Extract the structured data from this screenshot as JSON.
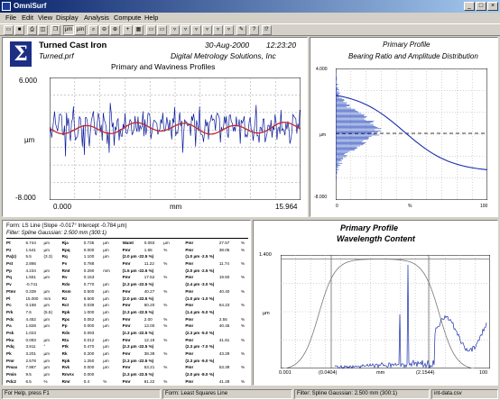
{
  "window": {
    "title": "OmniSurf",
    "minimize": "_",
    "maximize": "□",
    "close": "×"
  },
  "menu": [
    "File",
    "Edit",
    "View",
    "Display",
    "Analysis",
    "Compute",
    "Help"
  ],
  "toolbar": {
    "unit_um": "µm",
    "unit_in": "µin"
  },
  "main_plot": {
    "sample_name": "Turned Cast Iron",
    "file_name": "Turned.prf",
    "date": "30-Aug-2000",
    "time": "12:23:20",
    "company": "Digital Metrology Solutions, Inc",
    "title": "Primary and Waviness Profiles",
    "y_top": "6.000",
    "y_bottom": "-8.000",
    "y_unit": "µm",
    "x_left": "0.000",
    "x_right": "15.964",
    "x_unit": "mm",
    "colors": {
      "primary": "#0b1a9a",
      "waviness": "#c0282a"
    }
  },
  "bearing_plot": {
    "title": "Primary Profile",
    "subtitle": "Bearing Ratio and Amplitude Distribution",
    "y_top": "4.000",
    "y_bottom": "-8.000",
    "y_unit": "µm",
    "x_left": "0",
    "x_mid": "%",
    "x_right": "100"
  },
  "params": {
    "form_line": "Form: LS Line   (Slope -0.017°  Intercept -0.784 µm)",
    "filter_line": "Filter: Spline Gaussian: 2.500 mm (300:1)",
    "rows": [
      [
        "Pt",
        "6.744",
        "µm",
        "Rja",
        "0.735",
        "µm",
        "Wamt",
        "0.093",
        "µm",
        "Pmr",
        "27.57",
        "%"
      ],
      [
        "Pz",
        "1.541",
        "µm",
        "Rpq",
        "0.000",
        "µm",
        "Pmr",
        "1.65",
        "%",
        "Pmr",
        "38.05",
        "%"
      ],
      [
        "Pa(z)",
        "5.5",
        "(3.3)",
        "Rq",
        "1.100",
        "µm",
        "(2.0 µm  -22.5 %)",
        "",
        "",
        "(1.0 µm  -2.5 %)",
        "",
        ""
      ],
      [
        "Pst",
        "2.866",
        "",
        "Pv",
        "0.788",
        "",
        "Pmr",
        "11.22",
        "%",
        "Pmr",
        "11.74",
        "%"
      ],
      [
        "Pp",
        "4.234",
        "µm",
        "Rmt",
        "0.290",
        "mm",
        "(1.5 µm  -22.5 %)",
        "",
        "",
        "(2.0 µm  -2.5 %)",
        "",
        ""
      ],
      [
        "Pq",
        "1.551",
        "µm",
        "Rv",
        "0.153",
        "",
        "Pmr",
        "17.52",
        "%",
        "Pmr",
        "19.50",
        "%"
      ],
      [
        "Pv",
        "-0.741",
        "",
        "Rdo",
        "0.770",
        "µm",
        "(2.3 µm  -22.5 %)",
        "",
        "",
        "(2.4 µm  -3.0 %)",
        "",
        ""
      ],
      [
        "Ptmr",
        "0.339",
        "µm",
        "Rsm",
        "0.500",
        "µm",
        "Pmr",
        "40.27",
        "%",
        "Pmr",
        "40.40",
        "%"
      ],
      [
        "Pl",
        "15.000",
        "mm",
        "Rz",
        "6.500",
        "µm",
        "(2.0 µm  -22.5 %)",
        "",
        "",
        "(1.0 µm  -1.0 %)",
        "",
        ""
      ],
      [
        "Pc",
        "0.168",
        "µm",
        "Rct",
        "0.039",
        "µm",
        "Pmr",
        "60.20",
        "%",
        "Pmr",
        "64.23",
        "%"
      ],
      [
        "Prk",
        "7.6",
        "(5.5)",
        "Rpk",
        "1.000",
        "µm",
        "(2.3 µm  -22.5 %)",
        "",
        "",
        "(1.4 µm  -5.0 %)",
        "",
        ""
      ],
      [
        "Pdc",
        "4.452",
        "µm",
        "Rpc",
        "0.052",
        "µm",
        "Pmr",
        "2.00",
        "%",
        "Pmr",
        "2.55",
        "%"
      ],
      [
        "Pa",
        "1.828",
        "µm",
        "Pp",
        "0.000",
        "µm",
        "Pmr",
        "13.00",
        "%",
        "Pmr",
        "40.45",
        "%"
      ],
      [
        "Psk",
        "1.023",
        "",
        "Rds",
        "0.093",
        "",
        "(2.3 µm  -22.5 %)",
        "",
        "",
        "(2.3 µm  -5.0 %)",
        "",
        ""
      ],
      [
        "Pku",
        "0.093",
        "µm",
        "Rta",
        "0.012",
        "µm",
        "Pmr",
        "12.19",
        "%",
        "Pmr",
        "41.81",
        "%"
      ],
      [
        "Pdq",
        "3.911",
        "°",
        "Ptk",
        "0.470",
        "µm",
        "(2.3 µm  -22.5 %)",
        "",
        "",
        "(2.3 µm  -7.0 %)",
        "",
        ""
      ],
      [
        "Pk",
        "3.201",
        "µm",
        "Rk",
        "0.200",
        "µm",
        "Pmr",
        "38.39",
        "%",
        "Pmr",
        "43.29",
        "%"
      ],
      [
        "Pmr",
        "2.578",
        "µm",
        "Rpk",
        "1.250",
        "µm",
        "(2.3 µm  -22.5 %)",
        "",
        "",
        "(2.3 µm  -9.0 %)",
        "",
        ""
      ],
      [
        "Pmax",
        "7.987",
        "µm",
        "Rvk",
        "0.000",
        "µm",
        "Pmr",
        "53.21",
        "%",
        "Pmr",
        "53.39",
        "%"
      ],
      [
        "Pmin",
        "9.5",
        "µm",
        "RmAx",
        "0.000",
        "",
        "(2.3 µm  -22.5 %)",
        "",
        "",
        "(2.0 µm  -8.0 %)",
        "",
        ""
      ],
      [
        "Pdc2",
        "6.5",
        "%",
        "Rmr",
        "0.4",
        "%",
        "Pmr",
        "61.22",
        "%",
        "Pmr",
        "41.28",
        "%"
      ]
    ]
  },
  "wave_plot": {
    "title": "Primary Profile",
    "subtitle": "Wavelength Content",
    "y_top": "1.400",
    "y_unit": "µm",
    "x_labels": [
      "0.001",
      "(0.0404)",
      "mm",
      "(2.1544)",
      "100"
    ]
  },
  "status": {
    "help": "For Help, press F1",
    "form": "Form: Least Squares Line",
    "filter": "Filter: Spline Gaussian: 2.500 mm (300:1)",
    "file": "int-data.csv"
  }
}
